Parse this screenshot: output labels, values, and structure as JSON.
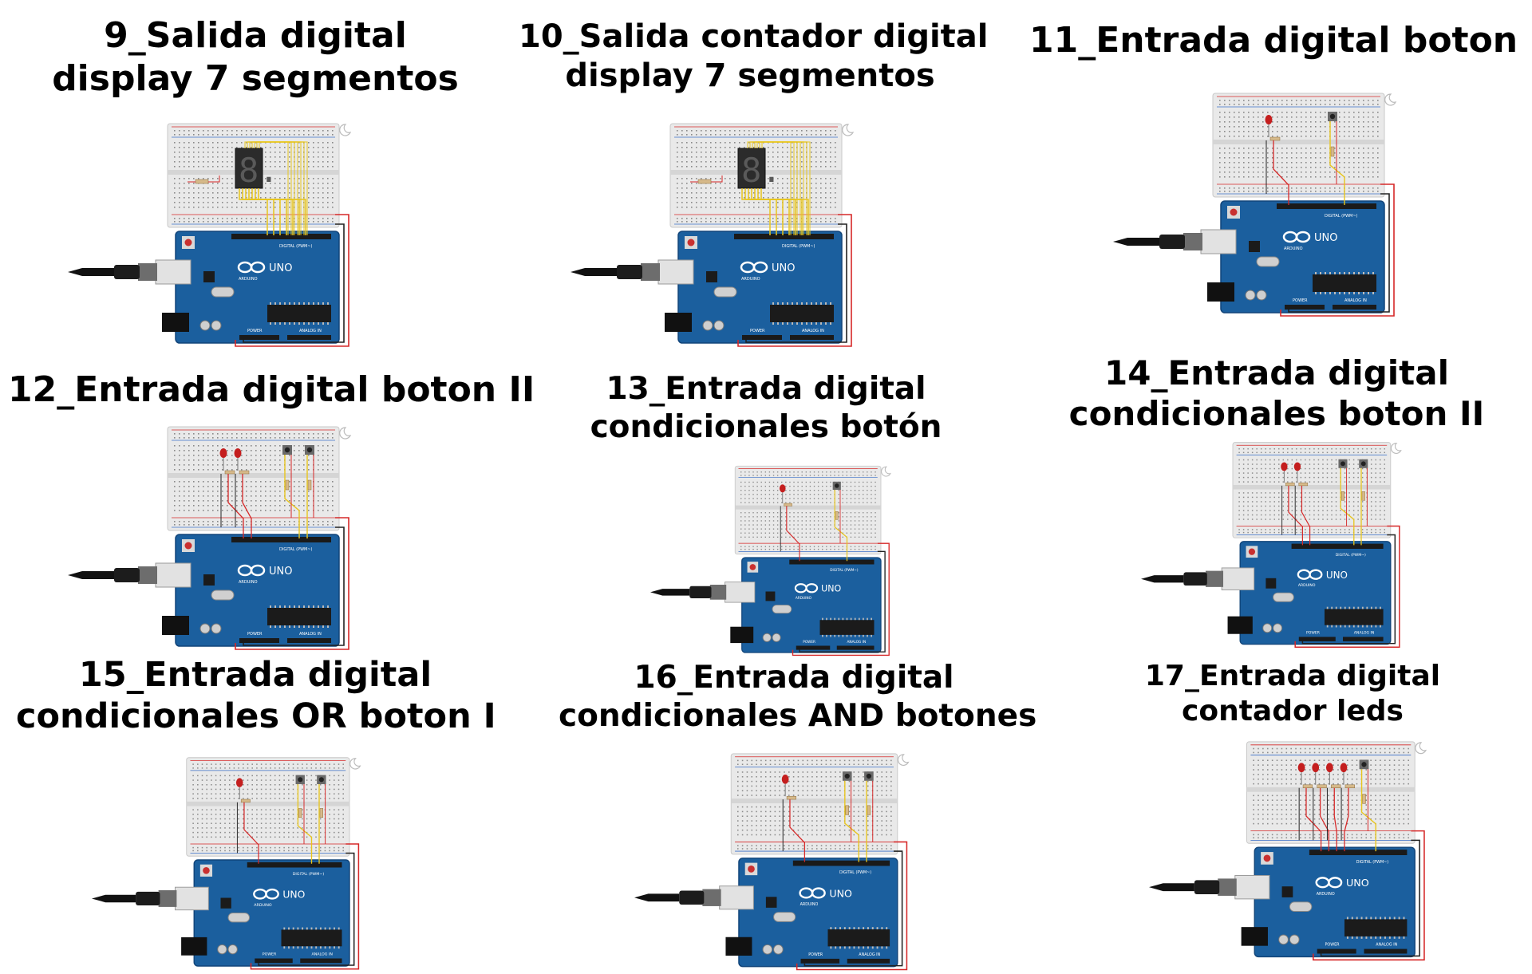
{
  "colors": {
    "board_blue": "#1b5f9e",
    "board_edge": "#12457a",
    "breadboard": "#e9e9e9",
    "wire_red": "#d62828",
    "wire_yellow": "#e8c51c",
    "wire_black": "#222222",
    "led_red": "#c41e1e"
  },
  "board_labels": {
    "uno": "UNO",
    "arduino": "ARDUINO",
    "power": "POWER",
    "analog": "ANALOG IN",
    "digital": "DIGITAL (PWM~)"
  },
  "panels": [
    {
      "id": 9,
      "line1": "9_Salida digital",
      "line2": "display 7 segmentos",
      "circuit": "display",
      "display_digit": "8."
    },
    {
      "id": 10,
      "line1": "10_Salida contador digital",
      "line2": "display 7 segmentos",
      "circuit": "display",
      "display_digit": "8."
    },
    {
      "id": 11,
      "line1": "11_Entrada digital boton",
      "line2": "",
      "circuit": "button",
      "leds": 1,
      "buttons": 1
    },
    {
      "id": 12,
      "line1": "12_Entrada digital boton II",
      "line2": "",
      "circuit": "button",
      "leds": 2,
      "buttons": 2
    },
    {
      "id": 13,
      "line1": "13_Entrada digital",
      "line2": "condicionales botón",
      "circuit": "button",
      "leds": 1,
      "buttons": 1
    },
    {
      "id": 14,
      "line1": "14_Entrada digital",
      "line2": "condicionales boton II",
      "circuit": "button",
      "leds": 2,
      "buttons": 2
    },
    {
      "id": 15,
      "line1": "15_Entrada digital",
      "line2": "condicionales OR boton I",
      "circuit": "button",
      "leds": 1,
      "buttons": 2
    },
    {
      "id": 16,
      "line1": "16_Entrada digital",
      "line2": "condicionales AND botones",
      "circuit": "button",
      "leds": 1,
      "buttons": 2
    },
    {
      "id": 17,
      "line1": "17_Entrada digital",
      "line2": "contador leds",
      "circuit": "counter",
      "leds": 4,
      "buttons": 1
    }
  ]
}
